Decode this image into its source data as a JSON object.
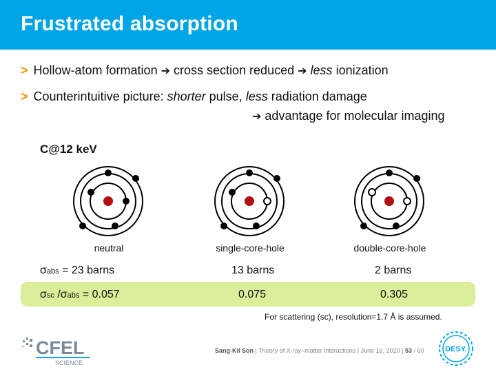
{
  "slide": {
    "title": "Frustrated absorption",
    "bullet_marker": ">",
    "arrow": "➔",
    "bullet1": {
      "part1": "Hollow-atom formation",
      "part2": "cross section reduced",
      "part3_em": "less",
      "part4": " ionization"
    },
    "bullet2": {
      "part1": "Counterintuitive picture: ",
      "part2_em": "shorter",
      "part3": " pulse, ",
      "part4_em": "less",
      "part5": " radiation damage",
      "line2": "advantage for molecular imaging"
    },
    "subheading": "C@12 keV",
    "configs": [
      {
        "label": "neutral",
        "abs": "σabs = 23 barns",
        "ratio": "σsc /σabs = 0.057"
      },
      {
        "label": "single-core-hole",
        "abs": "13 barns",
        "ratio": "0.075"
      },
      {
        "label": "double-core-hole",
        "abs": "2 barns",
        "ratio": "0.305"
      }
    ],
    "abs_row": {
      "sigma": "σ",
      "sub_abs": "abs",
      "value": " = 23 barns"
    },
    "ratio_row": {
      "sigma1": "σ",
      "sub_sc": "sc",
      "slash": " /",
      "sigma2": "σ",
      "sub_abs": "abs",
      "value": " = 0.057"
    },
    "note": "For scattering (sc), resolution=1.7 Å is assumed."
  },
  "footer": {
    "author": "Sang-Kil Son",
    "sep": " | ",
    "talk": "Theory of X-ray–matter interactions",
    "date": "June 16, 2020",
    "page": "53",
    "total": "/ 60"
  },
  "logos": {
    "cfel_name": "CFEL",
    "cfel_sub": "SCIENCE",
    "desy_name": "DESY."
  },
  "colors": {
    "title_bar": "#00a5e5",
    "bullet_marker": "#f39200",
    "nucleus": "#b01010",
    "highlight": "#dbee9a"
  }
}
